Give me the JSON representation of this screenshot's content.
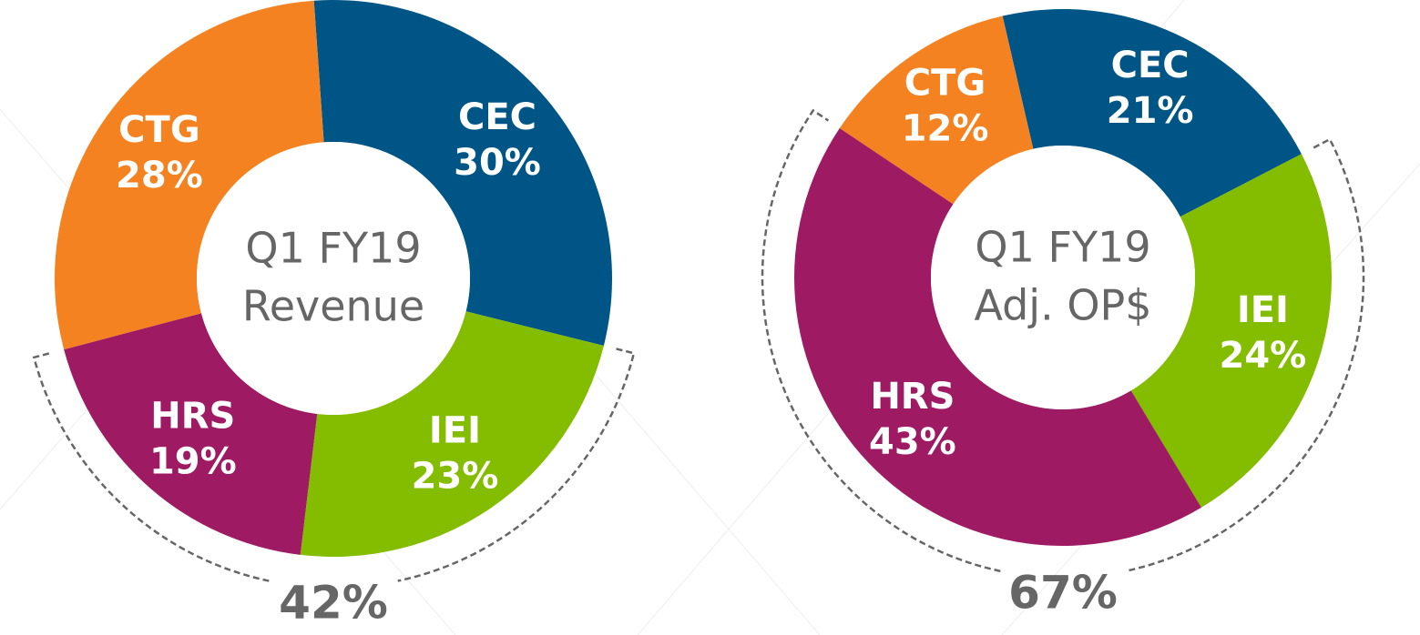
{
  "chart_data": [
    {
      "type": "pie",
      "center_label": [
        "Q1 FY19",
        "Revenue"
      ],
      "categories": [
        "CEC",
        "IEI",
        "HRS",
        "CTG"
      ],
      "values": [
        30,
        23,
        19,
        28
      ],
      "value_labels": [
        "30%",
        "23%",
        "19%",
        "28%"
      ],
      "colors": [
        "#005587",
        "#84bd00",
        "#9e1b63",
        "#f58220"
      ],
      "bracket_total": {
        "value": 42,
        "label": "42%"
      }
    },
    {
      "type": "pie",
      "center_label": [
        "Q1 FY19",
        "Adj. OP$"
      ],
      "categories": [
        "CEC",
        "IEI",
        "HRS",
        "CTG"
      ],
      "values": [
        21,
        24,
        43,
        12
      ],
      "value_labels": [
        "21%",
        "24%",
        "43%",
        "12%"
      ],
      "colors": [
        "#005587",
        "#84bd00",
        "#9e1b63",
        "#f58220"
      ],
      "bracket_total": {
        "value": 67,
        "label": "67%"
      }
    }
  ]
}
